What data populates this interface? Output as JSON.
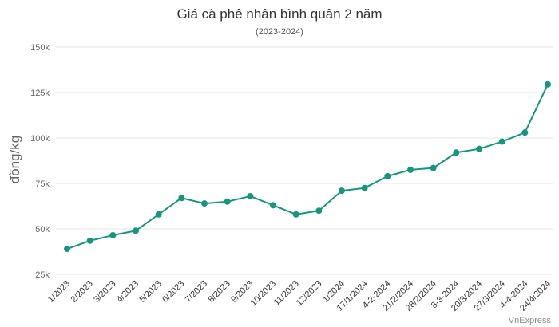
{
  "chart_data": {
    "type": "line",
    "title": "Giá cà phê nhân bình quân 2 năm",
    "subtitle": "(2023-2024)",
    "ylabel": "đồng/kg",
    "xlabel": "",
    "credit": "VnExpress",
    "ylim": [
      25000,
      150000
    ],
    "yticks": [
      25000,
      50000,
      75000,
      100000,
      125000,
      150000
    ],
    "ytick_labels": [
      "25k",
      "50k",
      "75k",
      "100k",
      "125k",
      "150k"
    ],
    "grid": true,
    "line_color": "#17967f",
    "categories": [
      "1/2023",
      "2/2023",
      "3/2023",
      "4/2023",
      "5/2023",
      "6/2023",
      "7/2023",
      "8/2023",
      "9/2023",
      "10/2023",
      "11/2023",
      "12/2023",
      "1/2024",
      "17/1/2024",
      "4-2-2024",
      "21/2/2024",
      "28/2/2024",
      "8-3-2024",
      "20/3/2024",
      "27/3/2024",
      "4-4-2024",
      "24/4/2024"
    ],
    "values": [
      39000,
      43500,
      46500,
      49000,
      58000,
      67000,
      64000,
      65000,
      68000,
      63000,
      58000,
      60000,
      71000,
      72500,
      79000,
      82500,
      83500,
      92000,
      94000,
      98000,
      103000,
      129500
    ]
  }
}
